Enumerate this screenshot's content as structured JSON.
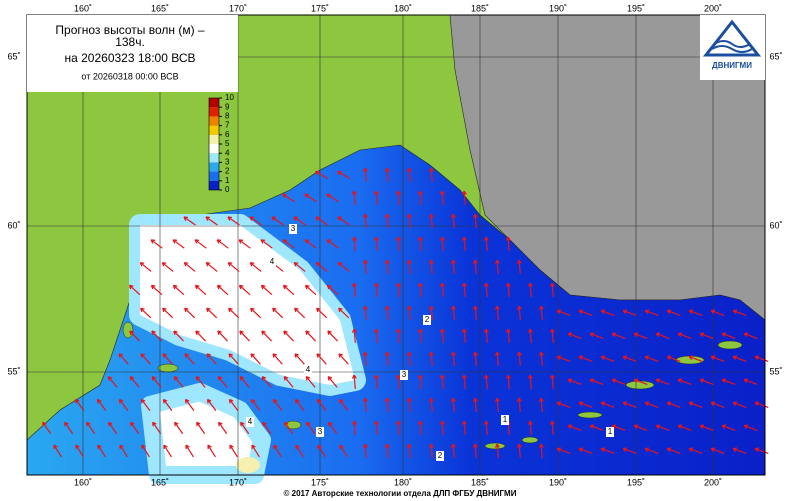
{
  "title": {
    "line1": "Прогноз высоты волн (м) –",
    "line2": "138ч.",
    "line3": "на 20260323 18:00 ВСВ",
    "line4": "от 20260318 00:00 ВСВ"
  },
  "logo": "ДВНИГМИ",
  "colorbar": {
    "ticks": [
      0,
      1,
      2,
      3,
      4,
      5,
      6,
      7,
      8,
      9,
      10
    ]
  },
  "lon_labels": [
    "160˚",
    "165˚",
    "170˚",
    "175˚",
    "180˚",
    "185˚",
    "190˚",
    "195˚",
    "200˚"
  ],
  "lat_labels": [
    "65˚",
    "60˚",
    "55˚"
  ],
  "contour_labels": [
    "4",
    "4",
    "4",
    "3",
    "3",
    "2",
    "1",
    "1",
    "2",
    "3"
  ],
  "footer": "© 2017 Авторские технологии отдела ДЛП ФГБУ ДВНИГМИ"
}
